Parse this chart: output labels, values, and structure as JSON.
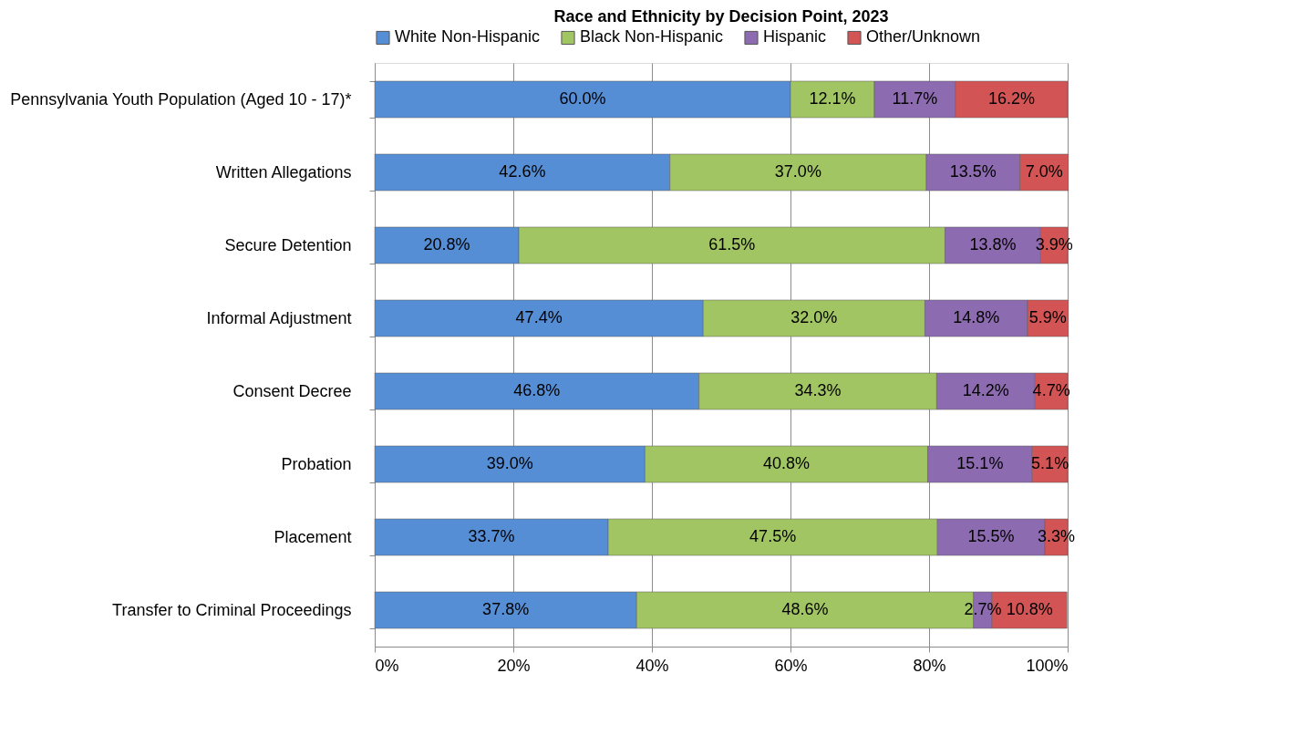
{
  "chart_data": {
    "type": "bar",
    "orientation": "horizontal",
    "stacked": true,
    "title": "Race and Ethnicity by Decision Point, 2023",
    "categories": [
      "Pennsylvania Youth Population (Aged 10 - 17)*",
      "Written Allegations",
      "Secure Detention",
      "Informal Adjustment",
      "Consent Decree",
      "Probation",
      "Placement",
      "Transfer to Criminal Proceedings"
    ],
    "series": [
      {
        "name": "White Non-Hispanic",
        "color": "#558ed5",
        "values": [
          60.0,
          42.6,
          20.8,
          47.4,
          46.8,
          39.0,
          33.7,
          37.8
        ],
        "value_labels": [
          "60.0%",
          "42.6%",
          "20.8%",
          "47.4%",
          "46.8%",
          "39.0%",
          "33.7%",
          "37.8%"
        ]
      },
      {
        "name": "Black Non-Hispanic",
        "color": "#a2c563",
        "values": [
          12.1,
          37.0,
          61.5,
          32.0,
          34.3,
          40.8,
          47.5,
          48.6
        ],
        "value_labels": [
          "12.1%",
          "37.0%",
          "61.5%",
          "32.0%",
          "34.3%",
          "40.8%",
          "47.5%",
          "48.6%"
        ]
      },
      {
        "name": "Hispanic",
        "color": "#8d6bb0",
        "values": [
          11.7,
          13.5,
          13.8,
          14.8,
          14.2,
          15.1,
          15.5,
          2.7
        ],
        "value_labels": [
          "11.7%",
          "13.5%",
          "13.8%",
          "14.8%",
          "14.2%",
          "15.1%",
          "15.5%",
          "2.7%"
        ]
      },
      {
        "name": "Other/Unknown",
        "color": "#d35454",
        "values": [
          16.2,
          7.0,
          3.9,
          5.9,
          4.7,
          5.1,
          3.3,
          10.8
        ],
        "value_labels": [
          "16.2%",
          "7.0%",
          "3.9%",
          "5.9%",
          "4.7%",
          "5.1%",
          "3.3%",
          "10.8%"
        ]
      }
    ],
    "xlim": [
      0,
      100
    ],
    "xticks": [
      {
        "value": 0,
        "label": "0%"
      },
      {
        "value": 20,
        "label": "20%"
      },
      {
        "value": 40,
        "label": "40%"
      },
      {
        "value": 60,
        "label": "60%"
      },
      {
        "value": 80,
        "label": "80%"
      },
      {
        "value": 100,
        "label": "100%"
      }
    ],
    "grid": "x",
    "legend": "top"
  }
}
